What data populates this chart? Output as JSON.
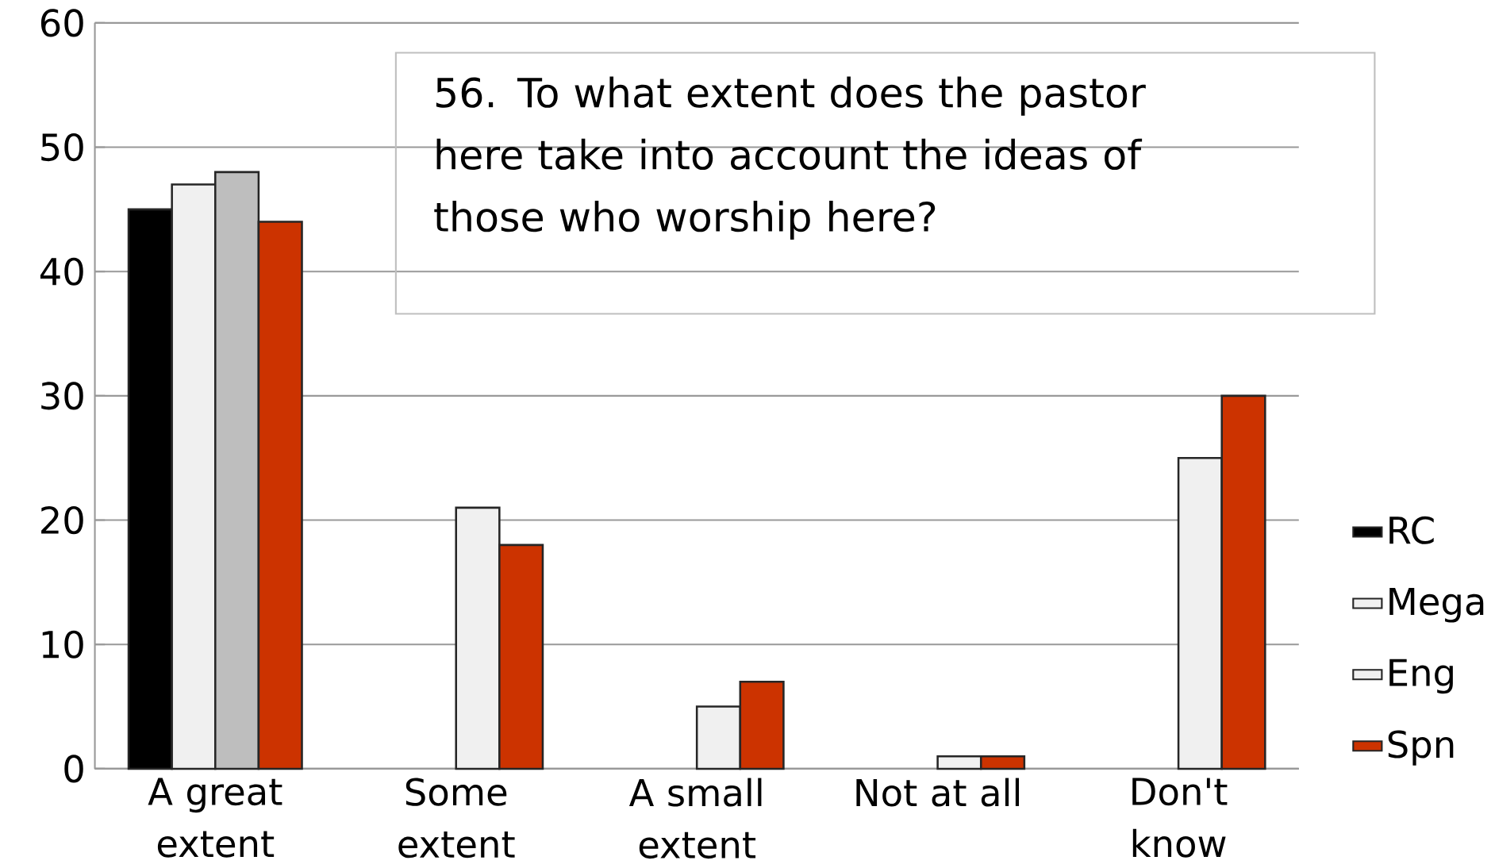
{
  "chart_data": {
    "type": "bar",
    "title": "56. To what extent does the pastor here take into account the ideas of those who worship here?",
    "categories": [
      "A great extent",
      "Some extent",
      "A small extent",
      "Not at all",
      "Don't know"
    ],
    "series": [
      {
        "name": "RC",
        "color": "#000000",
        "values": [
          45,
          null,
          null,
          null,
          null
        ]
      },
      {
        "name": "Mega",
        "color": "#f0f0f0",
        "values": [
          47,
          null,
          null,
          null,
          null
        ]
      },
      {
        "name": "Eng",
        "color": "#f0f0f0",
        "colors": [
          "#bebebe",
          "#f0f0f0",
          "#f0f0f0",
          "#f0f0f0",
          "#f0f0f0"
        ],
        "values": [
          48,
          21,
          5,
          1,
          25
        ]
      },
      {
        "name": "Spn",
        "color": "#cc3300",
        "values": [
          44,
          18,
          7,
          1,
          30
        ]
      }
    ],
    "ylim": [
      0,
      60
    ],
    "yticks": [
      0,
      10,
      20,
      30,
      40,
      50,
      60
    ],
    "grid": "y",
    "legend": "right"
  }
}
